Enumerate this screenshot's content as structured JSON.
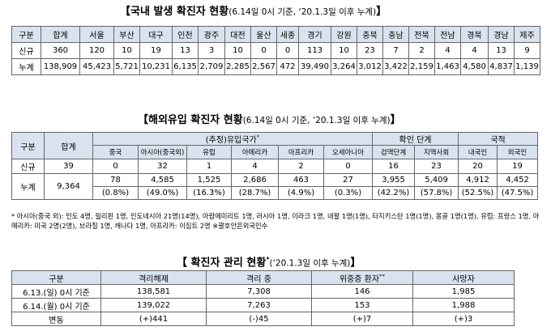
{
  "domestic": {
    "title": "【국내 발생 확진자 현황",
    "subtitle": "(6.14일 0시 기준, ‘20.1.3일 이후 누계)",
    "close": "】",
    "headers": [
      "구분",
      "합계",
      "서울",
      "부산",
      "대구",
      "인천",
      "광주",
      "대전",
      "울산",
      "세종",
      "경기",
      "강원",
      "충북",
      "충남",
      "전북",
      "전남",
      "경북",
      "경남",
      "제주"
    ],
    "rows": [
      [
        "신규",
        "360",
        "120",
        "10",
        "19",
        "13",
        "3",
        "10",
        "0",
        "0",
        "113",
        "10",
        "23",
        "7",
        "2",
        "4",
        "4",
        "13",
        "9"
      ],
      [
        "누계",
        "138,909",
        "45,423",
        "5,721",
        "10,231",
        "6,135",
        "2,709",
        "2,285",
        "2,567",
        "472",
        "39,490",
        "3,264",
        "3,012",
        "3,422",
        "2,159",
        "1,463",
        "4,580",
        "4,837",
        "1,139"
      ]
    ]
  },
  "overseas": {
    "title": "【해외유입 확진자 현황",
    "subtitle": "(6.14일 0시 기준, ‘20.1.3일 이후 누계)",
    "close": "】",
    "col_group": "구분",
    "col_total": "합계",
    "group_origin": "(추정)유입국가",
    "group_origin_mark": "*",
    "group_confirm": "확인 단계",
    "group_nation": "국적",
    "sub_headers": [
      "중국",
      "아시아(중국외)",
      "유럽",
      "아메리카",
      "아프리카",
      "오세아니아",
      "검역단계",
      "지역사회",
      "내국인",
      "외국인"
    ],
    "new_label": "신규",
    "new_total": "39",
    "new_values": [
      "0",
      "32",
      "1",
      "4",
      "2",
      "0",
      "16",
      "23",
      "20",
      "19"
    ],
    "cum_label": "누계",
    "cum_total": "9,364",
    "cum_values": [
      "78",
      "4,585",
      "1,525",
      "2,686",
      "463",
      "27",
      "3,955",
      "5,409",
      "4,912",
      "4,452"
    ],
    "cum_pct": [
      "(0.8%)",
      "(49.0%)",
      "(16.3%)",
      "(28.7%)",
      "(4.9%)",
      "(0.3%)",
      "(42.2%)",
      "(57.8%)",
      "(52.5%)",
      "(47.5%)"
    ],
    "note": "* 아시아(중국 외): 인도 4명, 필리핀 1명, 인도네시아 21명(14명), 아랍에미리트 1명, 러시아 1명, 이라크 1명, 네팔 1명(1명), 타지키스탄 1명(1명), 몽골 1명(1명), 유럽: 프랑스 1명, 아메리카: 미국 2명(2명), 브라질 1명, 캐나다 1명, 아프리카: 이집트 2명 ※괄호안은외국인수"
  },
  "management": {
    "title": "【 확진자 관리 현황",
    "title_mark": "*",
    "subtitle": "(‘20.1.3일 이후 누계)",
    "close": "】",
    "headers": [
      "구분",
      "격리해제",
      "격리 중",
      "위중증 환자",
      "사망자"
    ],
    "severe_mark": "**",
    "rows": [
      [
        "6.13.(일) 0시 기준",
        "138,581",
        "7,308",
        "146",
        "1,985"
      ],
      [
        "6.14.(월) 0시 기준",
        "139,022",
        "7,263",
        "153",
        "1,988"
      ],
      [
        "변동",
        "(+)441",
        "(-)45",
        "(+)7",
        "(+)3"
      ]
    ]
  }
}
